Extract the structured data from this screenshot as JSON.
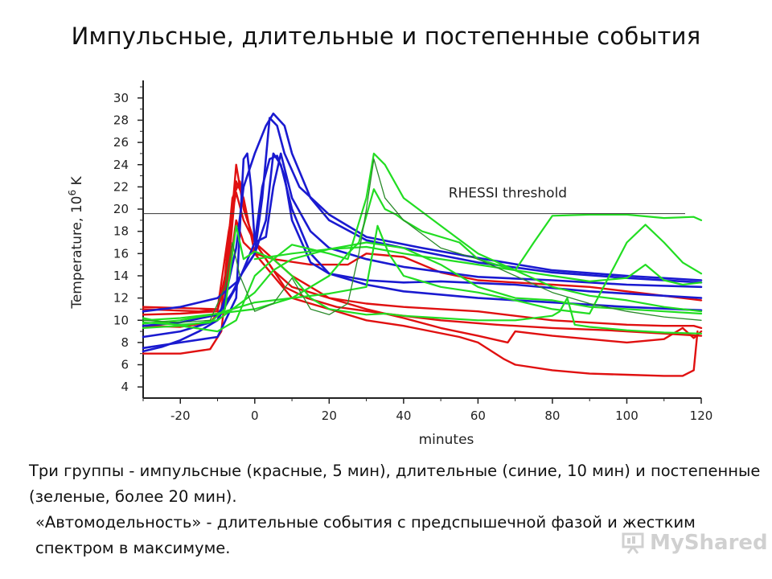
{
  "slide": {
    "title": "Импульсные, длительные и постепенные события",
    "caption": [
      "Три группы - импульсные (красные, 5 мин), длительные (синие, 10 мин) и постепенные (зеленые, более 20 мин).",
      "«Автомодельность» - длительные события с предспышечной фазой и жестким спектром в максимуме."
    ],
    "watermark": "MyShared"
  },
  "chart_data": {
    "type": "line",
    "xlabel": "minutes",
    "ylabel": "Temperature, 10",
    "ylabel_superscript": "6",
    "ylabel_unit": " K",
    "xlim": [
      -30,
      120
    ],
    "ylim": [
      3,
      31
    ],
    "x_ticks": [
      -20,
      0,
      20,
      40,
      60,
      80,
      100,
      120
    ],
    "y_ticks": [
      4,
      6,
      8,
      10,
      12,
      14,
      16,
      18,
      20,
      22,
      24,
      26,
      28,
      30
    ],
    "grid": false,
    "threshold": {
      "label": "RHESSI threshold",
      "y": 19.6
    },
    "colors": {
      "impulsive": "#e01010",
      "long": "#1a1ad0",
      "gradual": "#22dd22",
      "gradual_dark": "#2a8a2a",
      "threshold": "#333333"
    },
    "series": [
      {
        "group": "impulsive",
        "x": [
          -30,
          -20,
          -12,
          -9,
          -7,
          -5,
          -3,
          0,
          5,
          10,
          20,
          30,
          40,
          55,
          60,
          67,
          70,
          80,
          90,
          100,
          110,
          115,
          118,
          119
        ],
        "y": [
          7,
          7,
          7.4,
          9,
          15,
          22.5,
          21,
          16,
          14,
          12,
          11,
          10,
          9.5,
          8.5,
          8,
          6.5,
          6,
          5.5,
          5.2,
          5.1,
          5,
          5,
          5.5,
          9
        ]
      },
      {
        "group": "impulsive",
        "x": [
          -30,
          -20,
          -10,
          -8,
          -6,
          -4,
          -2,
          0,
          5,
          10,
          20,
          30,
          40,
          50,
          60,
          68,
          70,
          80,
          90,
          100,
          110,
          115,
          118,
          120
        ],
        "y": [
          10.5,
          10.6,
          10.8,
          14,
          21,
          22.5,
          19,
          17,
          15.5,
          14,
          12,
          11,
          10.2,
          9.3,
          8.6,
          8,
          9,
          8.6,
          8.3,
          8,
          8.3,
          9.3,
          8.4,
          9
        ]
      },
      {
        "group": "impulsive",
        "x": [
          -30,
          -15,
          -10,
          -7,
          -5,
          -3,
          0,
          5,
          10,
          20,
          30,
          40,
          60,
          80,
          100,
          110,
          118,
          120
        ],
        "y": [
          11,
          10.8,
          11,
          18,
          21.5,
          19,
          17,
          14.5,
          13,
          12,
          11.5,
          11.2,
          10.8,
          10,
          9.6,
          9.5,
          9.5,
          9.3
        ]
      },
      {
        "group": "impulsive",
        "x": [
          -30,
          -20,
          -12,
          -9,
          -7,
          -5,
          -3,
          0,
          4,
          8,
          14,
          22,
          35,
          50,
          65,
          80,
          95,
          110,
          120
        ],
        "y": [
          9.5,
          9.4,
          9.8,
          11,
          16,
          24,
          20,
          17,
          15,
          13,
          12,
          11.2,
          10.6,
          10,
          9.6,
          9.3,
          9.1,
          8.8,
          8.6
        ]
      },
      {
        "group": "impulsive",
        "x": [
          -30,
          -10,
          -7,
          -5,
          -3,
          0,
          5,
          15,
          25,
          30,
          40,
          50,
          60,
          70,
          80,
          90,
          100,
          110,
          120
        ],
        "y": [
          11.2,
          11,
          14,
          19,
          17,
          16,
          15.5,
          15,
          15,
          16,
          15.7,
          14.3,
          13.6,
          13.4,
          13.2,
          13,
          12.6,
          12.2,
          11.8
        ]
      },
      {
        "group": "long",
        "x": [
          -30,
          -25,
          -20,
          -15,
          -10,
          -8,
          -5,
          -3,
          0,
          3,
          5,
          8,
          10,
          15,
          20,
          30,
          40,
          60,
          80,
          100,
          120
        ],
        "y": [
          7.2,
          7.6,
          8.2,
          9,
          10,
          12,
          16.5,
          22,
          25,
          27.5,
          28.6,
          27.5,
          25,
          21,
          19,
          17.2,
          16.5,
          15.2,
          14.3,
          13.8,
          13.4
        ]
      },
      {
        "group": "long",
        "x": [
          -30,
          -20,
          -10,
          -5,
          -3,
          -2,
          -1,
          0,
          3,
          5,
          7,
          10,
          15,
          20,
          30,
          40,
          60,
          80,
          100,
          120
        ],
        "y": [
          7.5,
          8,
          8.5,
          12,
          24.5,
          25,
          22,
          17,
          17.5,
          22,
          25,
          21,
          18,
          16.5,
          15.5,
          14.8,
          13.9,
          13.6,
          13.2,
          13
        ]
      },
      {
        "group": "long",
        "x": [
          -30,
          -20,
          -10,
          -6,
          -3,
          0,
          2,
          4,
          6,
          8,
          12,
          20,
          30,
          45,
          60,
          80,
          100,
          120
        ],
        "y": [
          9.5,
          9.8,
          10.5,
          12.5,
          14.5,
          16,
          21,
          28.2,
          27.5,
          25,
          22,
          19.5,
          17.5,
          16.5,
          15.6,
          14.5,
          14,
          13.6
        ]
      },
      {
        "group": "long",
        "x": [
          -30,
          -20,
          -10,
          -5,
          0,
          3,
          5,
          7,
          10,
          15,
          20,
          30,
          40,
          60,
          80,
          100,
          120
        ],
        "y": [
          10.8,
          11.2,
          12,
          13.4,
          16,
          19,
          25,
          24,
          20,
          16,
          14.2,
          13.2,
          12.6,
          12,
          11.6,
          11.2,
          10.9
        ]
      },
      {
        "group": "long",
        "x": [
          -30,
          -20,
          -10,
          -5,
          0,
          2,
          4,
          6,
          8,
          10,
          15,
          20,
          30,
          40,
          50,
          70,
          90,
          110,
          120
        ],
        "y": [
          8.5,
          9,
          10,
          13,
          17,
          22,
          24.5,
          24.8,
          23,
          19,
          15.2,
          14.2,
          13.6,
          13.4,
          13.5,
          13.2,
          12.6,
          12.2,
          12
        ]
      },
      {
        "group": "gradual",
        "x": [
          -30,
          -20,
          -12,
          -8,
          -5,
          -3,
          0,
          5,
          10,
          15,
          20,
          30,
          35,
          40,
          50,
          60,
          70,
          80,
          82,
          84,
          86,
          90,
          100,
          110,
          120
        ],
        "y": [
          9.8,
          9.6,
          9.8,
          11,
          18.5,
          15.5,
          16.2,
          15.5,
          14,
          12,
          11,
          10.5,
          10.6,
          10.4,
          10.2,
          10,
          10,
          10.4,
          10.8,
          12,
          9.6,
          9.4,
          9.1,
          8.9,
          8.8
        ]
      },
      {
        "group": "gradual",
        "x": [
          -30,
          -20,
          -10,
          -5,
          0,
          5,
          10,
          20,
          25,
          30,
          32,
          35,
          40,
          50,
          60,
          70,
          80,
          90,
          100,
          110,
          120
        ],
        "y": [
          10.2,
          9.5,
          9,
          10,
          14,
          15.5,
          16.8,
          16,
          15.5,
          21,
          25,
          24,
          21,
          18.5,
          16,
          14.5,
          13,
          12.2,
          11.8,
          11.2,
          10.8
        ]
      },
      {
        "group": "gradual",
        "x": [
          -30,
          -20,
          -10,
          0,
          10,
          20,
          25,
          28,
          32,
          35,
          38,
          40,
          45,
          55,
          60,
          70,
          75,
          80,
          90,
          100,
          110,
          118,
          120
        ],
        "y": [
          10,
          10.2,
          10.6,
          11,
          12,
          14,
          16,
          17,
          21.8,
          20,
          19.5,
          19,
          18,
          17,
          15.5,
          14.5,
          17,
          19.4,
          19.5,
          19.5,
          19.2,
          19.3,
          19
        ]
      },
      {
        "group": "gradual",
        "x": [
          -30,
          -20,
          -10,
          0,
          10,
          20,
          30,
          33,
          36,
          40,
          50,
          60,
          70,
          80,
          90,
          100,
          105,
          110,
          115,
          120
        ],
        "y": [
          9.7,
          10,
          10.6,
          11.6,
          12,
          12.4,
          13,
          18.5,
          16,
          14,
          13,
          12.5,
          11.8,
          11,
          10.6,
          17,
          18.6,
          17,
          15.2,
          14.2
        ]
      },
      {
        "group": "gradual",
        "x": [
          -30,
          -20,
          -10,
          0,
          5,
          10,
          20,
          30,
          40,
          50,
          60,
          70,
          80,
          90,
          100,
          110,
          120
        ],
        "y": [
          9.3,
          9.5,
          10,
          12.5,
          14.5,
          15.5,
          16.4,
          17,
          16.5,
          15,
          13,
          12,
          11.8,
          11.2,
          11,
          10.8,
          10.6
        ]
      },
      {
        "group": "gradual",
        "x": [
          0,
          10,
          20,
          30,
          40,
          60,
          80,
          90,
          100,
          105,
          110,
          115,
          120
        ],
        "y": [
          15.5,
          16,
          16.4,
          16.6,
          16,
          15,
          14,
          13.5,
          13.8,
          15,
          13.6,
          13.2,
          13.4
        ]
      },
      {
        "group": "gradual_dark",
        "x": [
          -30,
          -20,
          -12,
          -8,
          -6,
          -4,
          0,
          5,
          10,
          15,
          20,
          25,
          28,
          30,
          32,
          35,
          40,
          50,
          60,
          70,
          80,
          90,
          100,
          110,
          120
        ],
        "y": [
          10,
          9.8,
          10,
          13,
          17,
          14,
          10.8,
          11.5,
          13.8,
          11,
          10.5,
          11.5,
          16,
          20,
          24.5,
          21,
          19,
          16.5,
          15.5,
          14,
          12.5,
          11.5,
          10.8,
          10.3,
          10
        ]
      }
    ]
  }
}
